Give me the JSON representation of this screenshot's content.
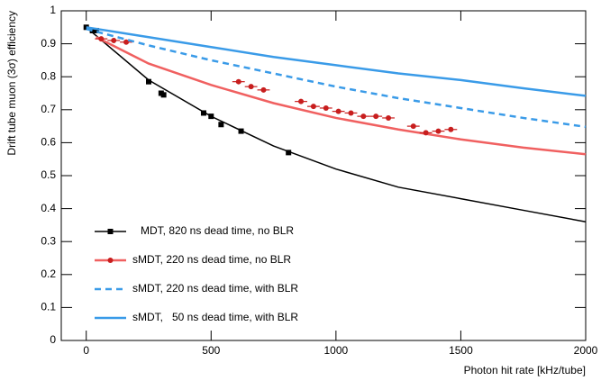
{
  "chart_data": {
    "type": "line",
    "xlabel": "Photon hit rate [kHz/tube]",
    "ylabel": "Drift tube muon (3σ) efficiency",
    "xlim": [
      -100,
      2000
    ],
    "ylim": [
      0,
      1
    ],
    "xticks": [
      0,
      500,
      1000,
      1500,
      2000
    ],
    "yticks": [
      0,
      0.1,
      0.2,
      0.3,
      0.4,
      0.5,
      0.6,
      0.7,
      0.8,
      0.9,
      1
    ],
    "legend": "lower left",
    "series": [
      {
        "name": "MDT, 820 ns dead time, no BLR",
        "color": "#000000",
        "line_style": "solid",
        "marker": "square",
        "curve": {
          "x": [
            0,
            250,
            500,
            750,
            1000,
            1250,
            1500,
            1750,
            2000
          ],
          "values": [
            0.95,
            0.79,
            0.68,
            0.59,
            0.52,
            0.465,
            0.43,
            0.395,
            0.36
          ]
        },
        "points": {
          "x": [
            0,
            25,
            40,
            250,
            300,
            310,
            470,
            500,
            540,
            620,
            810
          ],
          "values": [
            0.95,
            0.94,
            0.94,
            0.785,
            0.75,
            0.745,
            0.69,
            0.68,
            0.655,
            0.635,
            0.57
          ]
        }
      },
      {
        "name": "sMDT, 220 ns dead time, no BLR",
        "color": "#f06060",
        "line_style": "solid",
        "marker": "circle",
        "curve": {
          "x": [
            40,
            250,
            500,
            750,
            1000,
            1250,
            1500,
            1750,
            2000
          ],
          "values": [
            0.92,
            0.84,
            0.775,
            0.72,
            0.675,
            0.64,
            0.61,
            0.585,
            0.565
          ]
        },
        "points": {
          "x": [
            60,
            110,
            160,
            610,
            660,
            710,
            860,
            910,
            960,
            1010,
            1060,
            1110,
            1160,
            1210,
            1310,
            1360,
            1410,
            1460
          ],
          "values": [
            0.915,
            0.91,
            0.905,
            0.785,
            0.77,
            0.76,
            0.725,
            0.71,
            0.705,
            0.695,
            0.69,
            0.68,
            0.68,
            0.675,
            0.65,
            0.63,
            0.635,
            0.64
          ],
          "xerr": [
            25,
            25,
            25,
            25,
            25,
            25,
            25,
            25,
            25,
            25,
            25,
            25,
            25,
            25,
            25,
            25,
            25,
            25
          ]
        },
        "marker_color": "#c81e1e"
      },
      {
        "name": "sMDT, 220 ns dead time, with BLR",
        "color": "#3a9be8",
        "line_style": "dashed",
        "curve": {
          "x": [
            0,
            250,
            500,
            750,
            1000,
            1250,
            1500,
            1750,
            2000
          ],
          "values": [
            0.945,
            0.895,
            0.85,
            0.81,
            0.77,
            0.735,
            0.705,
            0.675,
            0.648
          ]
        }
      },
      {
        "name": "sMDT,   50 ns dead time, with BLR",
        "color": "#3a9be8",
        "line_style": "solid",
        "curve": {
          "x": [
            0,
            250,
            500,
            750,
            1000,
            1250,
            1500,
            1750,
            2000
          ],
          "values": [
            0.95,
            0.92,
            0.89,
            0.86,
            0.835,
            0.81,
            0.79,
            0.765,
            0.742
          ]
        }
      }
    ]
  }
}
